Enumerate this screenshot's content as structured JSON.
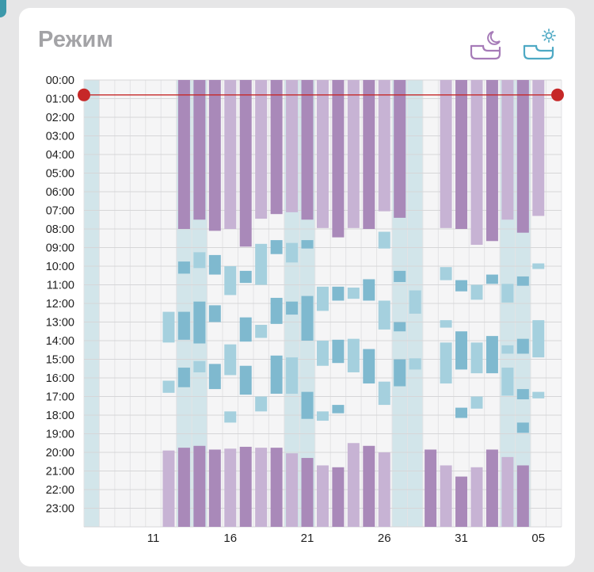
{
  "title": "Режим",
  "icons": {
    "night": "crib-moon-icon",
    "day": "crib-sun-icon"
  },
  "colors": {
    "night": "#a989b9",
    "night_light": "#c7b3d4",
    "day": "#7fb9cf",
    "day_light": "#a5d0de",
    "awake_highlight": "#d2e5ea",
    "marker": "#c62828"
  },
  "chart_data": {
    "type": "gantt",
    "y_axis": {
      "labels": [
        "00:00",
        "01:00",
        "02:00",
        "03:00",
        "04:00",
        "05:00",
        "06:00",
        "07:00",
        "08:00",
        "09:00",
        "10:00",
        "11:00",
        "12:00",
        "13:00",
        "14:00",
        "15:00",
        "16:00",
        "17:00",
        "18:00",
        "19:00",
        "20:00",
        "21:00",
        "22:00",
        "23:00"
      ],
      "range_hours": [
        0,
        24
      ]
    },
    "x_axis": {
      "tick_labels": [
        {
          "col": 4,
          "label": "11"
        },
        {
          "col": 9,
          "label": "16"
        },
        {
          "col": 14,
          "label": "21"
        },
        {
          "col": 19,
          "label": "26"
        },
        {
          "col": 24,
          "label": "31"
        },
        {
          "col": 29,
          "label": "05"
        }
      ],
      "columns": 31
    },
    "current_time_hours": 0.8,
    "highlighted_columns": [
      0,
      6,
      7,
      13,
      14,
      20,
      21,
      27,
      28
    ],
    "night_sleep": [
      {
        "col": 5,
        "start": 19.9,
        "end": 24,
        "dark": false
      },
      {
        "col": 6,
        "start": 0,
        "end": 8.0,
        "dark": true
      },
      {
        "col": 6,
        "start": 19.75,
        "end": 24,
        "dark": true
      },
      {
        "col": 7,
        "start": 0,
        "end": 7.5,
        "dark": true
      },
      {
        "col": 7,
        "start": 19.65,
        "end": 24,
        "dark": true
      },
      {
        "col": 8,
        "start": 0,
        "end": 8.1,
        "dark": true
      },
      {
        "col": 8,
        "start": 19.85,
        "end": 24,
        "dark": true
      },
      {
        "col": 9,
        "start": 0,
        "end": 8.0,
        "dark": false
      },
      {
        "col": 9,
        "start": 19.8,
        "end": 24,
        "dark": false
      },
      {
        "col": 10,
        "start": 0,
        "end": 8.95,
        "dark": true
      },
      {
        "col": 10,
        "start": 19.7,
        "end": 24,
        "dark": true
      },
      {
        "col": 11,
        "start": 0,
        "end": 7.45,
        "dark": false
      },
      {
        "col": 11,
        "start": 19.75,
        "end": 24,
        "dark": false
      },
      {
        "col": 12,
        "start": 0,
        "end": 7.2,
        "dark": true
      },
      {
        "col": 12,
        "start": 19.75,
        "end": 24,
        "dark": true
      },
      {
        "col": 13,
        "start": 0,
        "end": 7.1,
        "dark": false
      },
      {
        "col": 13,
        "start": 20.05,
        "end": 24,
        "dark": false
      },
      {
        "col": 14,
        "start": 0,
        "end": 7.5,
        "dark": true
      },
      {
        "col": 14,
        "start": 20.3,
        "end": 24,
        "dark": true
      },
      {
        "col": 15,
        "start": 0,
        "end": 7.95,
        "dark": false
      },
      {
        "col": 15,
        "start": 20.7,
        "end": 24,
        "dark": false
      },
      {
        "col": 16,
        "start": 0,
        "end": 8.45,
        "dark": true
      },
      {
        "col": 16,
        "start": 20.8,
        "end": 24,
        "dark": true
      },
      {
        "col": 17,
        "start": 0,
        "end": 7.95,
        "dark": false
      },
      {
        "col": 17,
        "start": 19.5,
        "end": 24,
        "dark": false
      },
      {
        "col": 18,
        "start": 0,
        "end": 8.0,
        "dark": true
      },
      {
        "col": 18,
        "start": 19.65,
        "end": 24,
        "dark": true
      },
      {
        "col": 19,
        "start": 0,
        "end": 7.05,
        "dark": false
      },
      {
        "col": 19,
        "start": 20.0,
        "end": 24,
        "dark": false
      },
      {
        "col": 20,
        "start": 0,
        "end": 7.4,
        "dark": true
      },
      {
        "col": 22,
        "start": 19.85,
        "end": 24,
        "dark": true
      },
      {
        "col": 23,
        "start": 0,
        "end": 7.95,
        "dark": false
      },
      {
        "col": 23,
        "start": 20.7,
        "end": 24,
        "dark": false
      },
      {
        "col": 24,
        "start": 0,
        "end": 8.0,
        "dark": true
      },
      {
        "col": 24,
        "start": 21.3,
        "end": 24,
        "dark": true
      },
      {
        "col": 25,
        "start": 0,
        "end": 8.85,
        "dark": false
      },
      {
        "col": 25,
        "start": 20.8,
        "end": 24,
        "dark": false
      },
      {
        "col": 26,
        "start": 0,
        "end": 8.65,
        "dark": true
      },
      {
        "col": 26,
        "start": 19.85,
        "end": 24,
        "dark": true
      },
      {
        "col": 27,
        "start": 0,
        "end": 7.5,
        "dark": false
      },
      {
        "col": 27,
        "start": 20.25,
        "end": 24,
        "dark": false
      },
      {
        "col": 28,
        "start": 0,
        "end": 8.2,
        "dark": true
      },
      {
        "col": 28,
        "start": 20.7,
        "end": 24,
        "dark": true
      },
      {
        "col": 29,
        "start": 0,
        "end": 7.3,
        "dark": false
      }
    ],
    "day_naps": [
      {
        "col": 5,
        "start": 12.45,
        "end": 14.1,
        "dark": false
      },
      {
        "col": 5,
        "start": 16.15,
        "end": 16.8,
        "dark": false
      },
      {
        "col": 6,
        "start": 9.75,
        "end": 10.4,
        "dark": true
      },
      {
        "col": 6,
        "start": 12.45,
        "end": 13.95,
        "dark": true
      },
      {
        "col": 6,
        "start": 15.45,
        "end": 16.5,
        "dark": true
      },
      {
        "col": 7,
        "start": 9.25,
        "end": 10.1,
        "dark": false
      },
      {
        "col": 7,
        "start": 11.9,
        "end": 14.15,
        "dark": true
      },
      {
        "col": 7,
        "start": 15.1,
        "end": 15.7,
        "dark": false
      },
      {
        "col": 8,
        "start": 9.4,
        "end": 10.45,
        "dark": true
      },
      {
        "col": 8,
        "start": 12.1,
        "end": 13.0,
        "dark": true
      },
      {
        "col": 8,
        "start": 15.25,
        "end": 16.6,
        "dark": true
      },
      {
        "col": 9,
        "start": 10.0,
        "end": 11.55,
        "dark": false
      },
      {
        "col": 9,
        "start": 14.2,
        "end": 15.85,
        "dark": false
      },
      {
        "col": 9,
        "start": 17.8,
        "end": 18.4,
        "dark": false
      },
      {
        "col": 10,
        "start": 10.25,
        "end": 10.9,
        "dark": true
      },
      {
        "col": 10,
        "start": 12.75,
        "end": 14.05,
        "dark": true
      },
      {
        "col": 10,
        "start": 15.35,
        "end": 16.9,
        "dark": true
      },
      {
        "col": 11,
        "start": 8.8,
        "end": 11.0,
        "dark": false
      },
      {
        "col": 11,
        "start": 13.15,
        "end": 13.85,
        "dark": false
      },
      {
        "col": 11,
        "start": 17.0,
        "end": 17.8,
        "dark": false
      },
      {
        "col": 12,
        "start": 8.6,
        "end": 9.35,
        "dark": true
      },
      {
        "col": 12,
        "start": 11.7,
        "end": 13.1,
        "dark": true
      },
      {
        "col": 12,
        "start": 14.8,
        "end": 16.85,
        "dark": true
      },
      {
        "col": 13,
        "start": 8.75,
        "end": 9.8,
        "dark": false
      },
      {
        "col": 13,
        "start": 11.9,
        "end": 12.6,
        "dark": true
      },
      {
        "col": 13,
        "start": 14.9,
        "end": 16.85,
        "dark": false
      },
      {
        "col": 14,
        "start": 8.6,
        "end": 9.05,
        "dark": true
      },
      {
        "col": 14,
        "start": 11.6,
        "end": 14.0,
        "dark": true
      },
      {
        "col": 14,
        "start": 16.75,
        "end": 18.2,
        "dark": true
      },
      {
        "col": 15,
        "start": 11.1,
        "end": 12.4,
        "dark": false
      },
      {
        "col": 15,
        "start": 14.0,
        "end": 15.35,
        "dark": false
      },
      {
        "col": 15,
        "start": 17.8,
        "end": 18.3,
        "dark": false
      },
      {
        "col": 16,
        "start": 11.1,
        "end": 11.85,
        "dark": true
      },
      {
        "col": 16,
        "start": 13.95,
        "end": 15.2,
        "dark": true
      },
      {
        "col": 16,
        "start": 17.45,
        "end": 17.9,
        "dark": true
      },
      {
        "col": 17,
        "start": 11.15,
        "end": 11.75,
        "dark": false
      },
      {
        "col": 17,
        "start": 13.9,
        "end": 15.7,
        "dark": false
      },
      {
        "col": 18,
        "start": 10.7,
        "end": 11.85,
        "dark": true
      },
      {
        "col": 18,
        "start": 14.45,
        "end": 16.3,
        "dark": true
      },
      {
        "col": 19,
        "start": 8.15,
        "end": 9.05,
        "dark": false
      },
      {
        "col": 19,
        "start": 11.85,
        "end": 13.4,
        "dark": false
      },
      {
        "col": 19,
        "start": 16.2,
        "end": 17.45,
        "dark": false
      },
      {
        "col": 20,
        "start": 10.25,
        "end": 10.85,
        "dark": true
      },
      {
        "col": 20,
        "start": 13.0,
        "end": 13.5,
        "dark": true
      },
      {
        "col": 20,
        "start": 15.0,
        "end": 16.45,
        "dark": true
      },
      {
        "col": 21,
        "start": 11.3,
        "end": 12.55,
        "dark": false
      },
      {
        "col": 21,
        "start": 14.95,
        "end": 15.55,
        "dark": false
      },
      {
        "col": 23,
        "start": 10.05,
        "end": 10.75,
        "dark": false
      },
      {
        "col": 23,
        "start": 12.9,
        "end": 13.3,
        "dark": false
      },
      {
        "col": 23,
        "start": 14.1,
        "end": 16.3,
        "dark": false
      },
      {
        "col": 24,
        "start": 10.75,
        "end": 11.35,
        "dark": true
      },
      {
        "col": 24,
        "start": 13.5,
        "end": 15.55,
        "dark": true
      },
      {
        "col": 24,
        "start": 17.6,
        "end": 18.15,
        "dark": true
      },
      {
        "col": 25,
        "start": 11.0,
        "end": 11.8,
        "dark": false
      },
      {
        "col": 25,
        "start": 14.1,
        "end": 15.75,
        "dark": false
      },
      {
        "col": 25,
        "start": 17.0,
        "end": 17.65,
        "dark": false
      },
      {
        "col": 26,
        "start": 10.45,
        "end": 10.95,
        "dark": true
      },
      {
        "col": 26,
        "start": 13.75,
        "end": 15.75,
        "dark": true
      },
      {
        "col": 27,
        "start": 10.95,
        "end": 11.95,
        "dark": false
      },
      {
        "col": 27,
        "start": 14.25,
        "end": 14.7,
        "dark": false
      },
      {
        "col": 27,
        "start": 15.45,
        "end": 16.95,
        "dark": false
      },
      {
        "col": 28,
        "start": 10.55,
        "end": 11.05,
        "dark": true
      },
      {
        "col": 28,
        "start": 13.9,
        "end": 14.7,
        "dark": true
      },
      {
        "col": 28,
        "start": 16.6,
        "end": 17.15,
        "dark": true
      },
      {
        "col": 28,
        "start": 18.4,
        "end": 18.95,
        "dark": true
      },
      {
        "col": 29,
        "start": 9.85,
        "end": 10.15,
        "dark": false
      },
      {
        "col": 29,
        "start": 12.9,
        "end": 14.9,
        "dark": false
      },
      {
        "col": 29,
        "start": 16.75,
        "end": 17.1,
        "dark": false
      }
    ]
  }
}
